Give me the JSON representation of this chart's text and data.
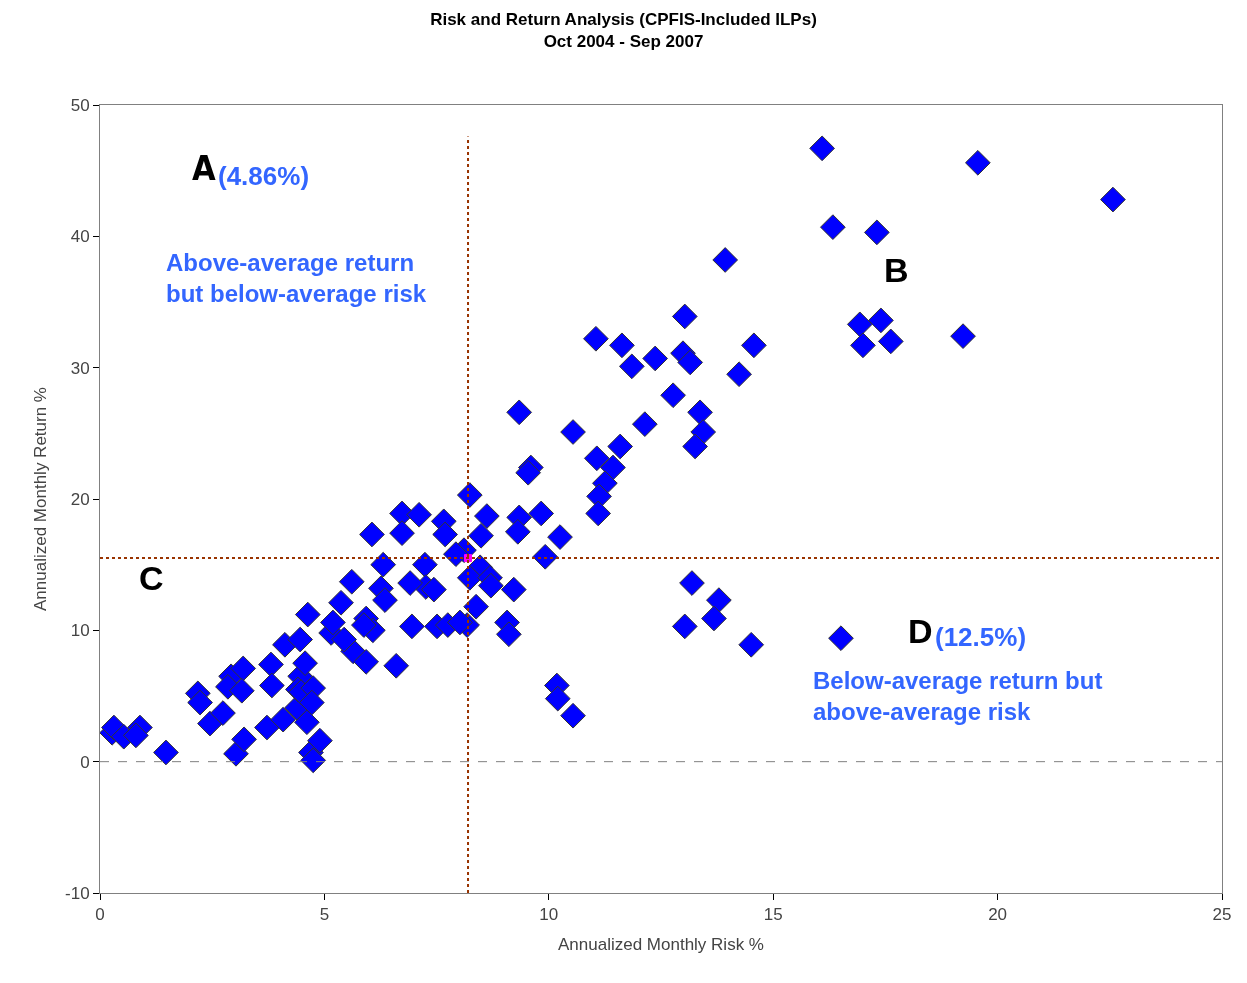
{
  "chart_data": {
    "type": "scatter",
    "title": "Risk and Return Analysis (CPFIS-Included ILPs)",
    "subtitle": "Oct 2004 - Sep 2007",
    "xlabel": "Annualized Monthly Risk %",
    "ylabel": "Annualized Monthly Return %",
    "xlim": [
      0,
      25
    ],
    "xticks": [
      0,
      5,
      10,
      15,
      20,
      25
    ],
    "ylim": [
      -10,
      50
    ],
    "yticks": [
      -10,
      0,
      10,
      20,
      30,
      40,
      50
    ],
    "grid": false,
    "marker": "diamond",
    "series": [
      {
        "color": "#0000ff",
        "x": [
          16.09,
          19.56,
          22.57,
          16.33,
          17.31,
          13.93,
          19.23,
          16.93,
          17.4,
          17.0,
          17.62,
          13.03,
          11.05,
          11.63,
          12.37,
          11.85,
          12.99,
          13.15,
          14.24,
          14.57,
          12.77,
          9.34,
          10.54,
          12.14,
          13.37,
          13.44,
          13.26,
          11.59,
          11.07,
          11.43,
          11.25,
          11.12,
          11.1,
          9.6,
          9.54,
          8.24,
          7.66,
          7.69,
          6.73,
          7.11,
          6.06,
          6.73,
          8.62,
          9.34,
          9.83,
          9.31,
          8.49,
          10.25,
          9.92,
          8.11,
          7.93,
          8.47,
          8.24,
          8.69,
          9.22,
          8.38,
          8.18,
          7.51,
          7.75,
          6.95,
          8.02,
          9.07,
          9.11,
          8.71,
          6.31,
          5.61,
          6.26,
          6.35,
          5.37,
          5.93,
          6.08,
          5.64,
          6.6,
          7.24,
          7.26,
          7.44,
          6.91,
          5.88,
          5.15,
          5.44,
          4.63,
          5.19,
          5.93,
          13.19,
          13.79,
          13.03,
          13.68,
          14.51,
          16.51,
          10.18,
          10.2,
          10.54,
          0.27,
          0.31,
          0.53,
          0.89,
          0.8,
          1.47,
          2.18,
          2.23,
          2.45,
          2.74,
          2.92,
          2.85,
          3.19,
          3.16,
          3.03,
          3.21,
          3.72,
          3.81,
          3.83,
          4.12,
          4.08,
          4.39,
          4.46,
          4.57,
          4.41,
          4.61,
          4.7,
          4.75,
          4.9,
          4.48,
          4.75,
          4.46,
          4.72
        ],
        "values": [
          46.7,
          45.6,
          42.8,
          40.7,
          40.3,
          38.2,
          32.4,
          33.3,
          33.6,
          31.7,
          32.0,
          33.9,
          32.2,
          31.7,
          30.7,
          30.1,
          31.1,
          30.4,
          29.5,
          31.7,
          27.9,
          26.6,
          25.1,
          25.7,
          26.6,
          25.1,
          24.0,
          24.0,
          23.1,
          22.4,
          21.2,
          20.2,
          18.9,
          22.4,
          22.0,
          20.3,
          18.3,
          17.3,
          18.9,
          18.8,
          17.3,
          17.4,
          18.7,
          18.6,
          18.9,
          17.5,
          17.2,
          17.1,
          15.6,
          16.1,
          15.8,
          14.8,
          14.0,
          14.0,
          13.1,
          11.8,
          10.4,
          10.3,
          10.4,
          10.3,
          10.6,
          10.6,
          9.7,
          13.4,
          15.0,
          13.7,
          13.2,
          12.3,
          12.1,
          10.9,
          10.0,
          8.4,
          7.3,
          15.0,
          13.3,
          13.1,
          13.6,
          10.4,
          9.8,
          9.3,
          11.2,
          10.6,
          7.6,
          13.6,
          12.3,
          10.3,
          10.9,
          8.9,
          9.4,
          5.8,
          4.8,
          3.5,
          2.2,
          2.6,
          1.9,
          2.6,
          2.0,
          0.7,
          5.2,
          4.5,
          2.9,
          3.7,
          6.5,
          5.7,
          7.1,
          5.4,
          0.6,
          1.7,
          2.6,
          7.4,
          5.8,
          8.9,
          3.2,
          4.1,
          6.5,
          7.5,
          5.5,
          3.0,
          0.7,
          0.1,
          1.6,
          5.3,
          5.6,
          9.3,
          4.5
        ]
      },
      {
        "color": "#ff00ff",
        "marker": "square",
        "x": [
          8.2
        ],
        "values": [
          15.5
        ]
      }
    ],
    "ref_lines": [
      {
        "axis": "x",
        "value": 8.2,
        "color": "#993300",
        "line_style": "dotted"
      },
      {
        "axis": "y",
        "value": 15.5,
        "color": "#993300",
        "line_style": "dotted"
      },
      {
        "axis": "y",
        "value": 0,
        "color": "#808080",
        "line_style": "dashed"
      }
    ],
    "annotations": [
      "A",
      "(4.86%)",
      "Above-average return\nbut below-average risk",
      "B",
      "C",
      "D",
      "(12.5%)",
      "Below-average return but\nabove-average risk"
    ]
  }
}
